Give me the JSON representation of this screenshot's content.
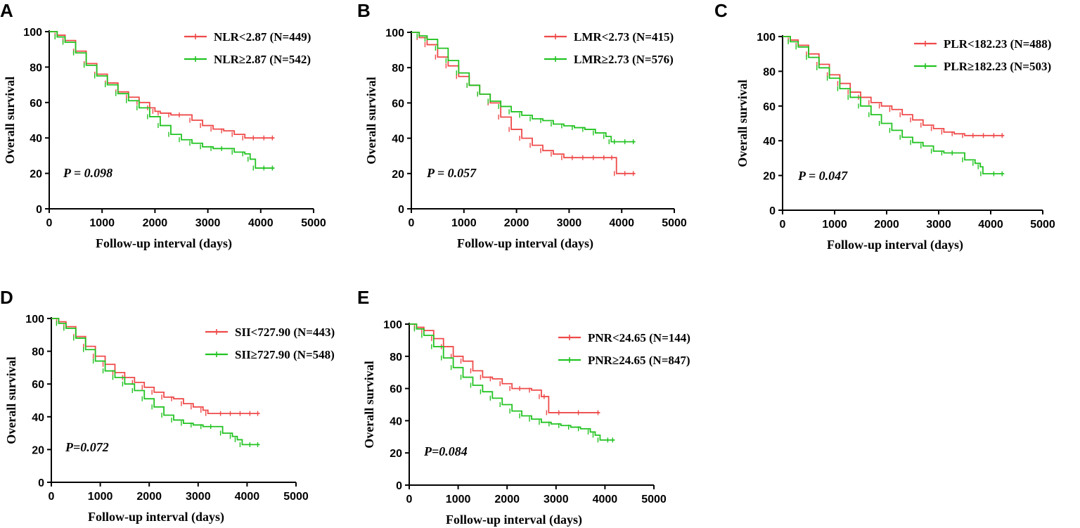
{
  "chart_data": [
    {
      "type": "line",
      "panel": "A",
      "title": "",
      "xlabel": "Follow-up interval (days)",
      "ylabel": "Overall survival",
      "xlim": [
        0,
        5000
      ],
      "ylim": [
        0,
        100
      ],
      "xticks": [
        "0",
        "1000",
        "2000",
        "3000",
        "4000",
        "5000"
      ],
      "yticks": [
        "0",
        "20",
        "40",
        "60",
        "80",
        "100"
      ],
      "p_value": "P =  0.098",
      "series": [
        {
          "name": "NLR<2.87 (N=449)",
          "color": "#ef4a4a",
          "x": [
            0,
            150,
            300,
            500,
            700,
            900,
            1100,
            1300,
            1500,
            1700,
            1900,
            2000,
            2100,
            2300,
            2500,
            2700,
            2900,
            3100,
            3300,
            3500,
            3700,
            3900,
            4100,
            4260
          ],
          "y": [
            100,
            98,
            95,
            89,
            82,
            76,
            71,
            66,
            63,
            60,
            57,
            55,
            54,
            53,
            53,
            50,
            47,
            45,
            44,
            42,
            40,
            40,
            40,
            40
          ]
        },
        {
          "name": "NLR≥2.87 (N=542)",
          "color": "#22c322",
          "x": [
            0,
            150,
            300,
            500,
            700,
            900,
            1100,
            1300,
            1500,
            1700,
            1900,
            2100,
            2300,
            2500,
            2700,
            2900,
            3100,
            3300,
            3500,
            3700,
            3800,
            3900,
            4100,
            4260
          ],
          "y": [
            100,
            97,
            94,
            88,
            81,
            75,
            70,
            65,
            61,
            57,
            52,
            47,
            42,
            39,
            37,
            35,
            34,
            34,
            32,
            31,
            28,
            23,
            23,
            23
          ]
        }
      ]
    },
    {
      "type": "line",
      "panel": "B",
      "title": "",
      "xlabel": "Follow-up interval (days)",
      "ylabel": "Overall survival",
      "xlim": [
        0,
        5000
      ],
      "ylim": [
        0,
        100
      ],
      "xticks": [
        "0",
        "1000",
        "2000",
        "3000",
        "4000",
        "5000"
      ],
      "yticks": [
        "0",
        "20",
        "40",
        "60",
        "80",
        "100"
      ],
      "p_value": "P =  0.057",
      "series": [
        {
          "name": "LMR<2.73 (N=415)",
          "color": "#ef4a4a",
          "x": [
            0,
            150,
            300,
            500,
            700,
            900,
            1100,
            1300,
            1500,
            1700,
            1900,
            2100,
            2300,
            2500,
            2700,
            2900,
            3100,
            3300,
            3500,
            3700,
            3850,
            3900,
            4100,
            4260
          ],
          "y": [
            100,
            97,
            93,
            86,
            81,
            75,
            70,
            65,
            60,
            52,
            45,
            40,
            36,
            33,
            31,
            29,
            29,
            29,
            29,
            29,
            29,
            20,
            20,
            20
          ]
        },
        {
          "name": "LMR≥2.73 (N=576)",
          "color": "#22c322",
          "x": [
            0,
            150,
            300,
            500,
            700,
            900,
            1100,
            1300,
            1500,
            1700,
            1900,
            2100,
            2300,
            2500,
            2700,
            2900,
            3100,
            3300,
            3500,
            3700,
            3800,
            3900,
            4100,
            4260
          ],
          "y": [
            100,
            98,
            96,
            91,
            84,
            77,
            70,
            65,
            61,
            58,
            55,
            53,
            51,
            50,
            48,
            47,
            46,
            45,
            43,
            41,
            38,
            38,
            38,
            38
          ]
        }
      ]
    },
    {
      "type": "line",
      "panel": "C",
      "title": "",
      "xlabel": "Follow-up interval (days)",
      "ylabel": "Overall survival",
      "xlim": [
        0,
        5000
      ],
      "ylim": [
        0,
        100
      ],
      "xticks": [
        "0",
        "1000",
        "2000",
        "3000",
        "4000",
        "5000"
      ],
      "yticks": [
        "0",
        "20",
        "40",
        "60",
        "80",
        "100"
      ],
      "p_value": "P =  0.047",
      "series": [
        {
          "name": "PLR<182.23 (N=488)",
          "color": "#ef4a4a",
          "x": [
            0,
            150,
            300,
            500,
            700,
            900,
            1100,
            1300,
            1500,
            1700,
            1900,
            2100,
            2300,
            2500,
            2700,
            2900,
            3100,
            3300,
            3500,
            3700,
            3900,
            4100,
            4260
          ],
          "y": [
            100,
            98,
            95,
            90,
            84,
            78,
            73,
            68,
            65,
            62,
            60,
            58,
            55,
            52,
            49,
            47,
            45,
            44,
            43,
            43,
            43,
            43,
            43
          ]
        },
        {
          "name": "PLR≥182.23 (N=503)",
          "color": "#22c322",
          "x": [
            0,
            150,
            300,
            500,
            700,
            900,
            1100,
            1300,
            1500,
            1700,
            1900,
            2100,
            2300,
            2500,
            2700,
            2900,
            3100,
            3300,
            3500,
            3700,
            3800,
            3850,
            4100,
            4260
          ],
          "y": [
            100,
            97,
            94,
            88,
            82,
            76,
            70,
            65,
            60,
            55,
            50,
            46,
            42,
            39,
            37,
            34,
            33,
            33,
            29,
            27,
            25,
            21,
            21,
            21
          ]
        }
      ]
    },
    {
      "type": "line",
      "panel": "D",
      "title": "",
      "xlabel": "Follow-up interval (days)",
      "ylabel": "Overall survival",
      "xlim": [
        0,
        5000
      ],
      "ylim": [
        0,
        100
      ],
      "xticks": [
        "0",
        "1000",
        "2000",
        "3000",
        "4000",
        "5000"
      ],
      "yticks": [
        "0",
        "20",
        "40",
        "60",
        "80",
        "100"
      ],
      "p_value": "P=0.072",
      "series": [
        {
          "name": "SII<727.90 (N=443)",
          "color": "#ef4a4a",
          "x": [
            0,
            150,
            300,
            500,
            700,
            900,
            1100,
            1300,
            1500,
            1700,
            1900,
            2100,
            2300,
            2500,
            2700,
            2900,
            3100,
            3200,
            3500,
            3700,
            3900,
            4100,
            4260
          ],
          "y": [
            100,
            98,
            95,
            89,
            83,
            77,
            72,
            67,
            64,
            61,
            58,
            55,
            52,
            51,
            48,
            46,
            44,
            42,
            42,
            42,
            42,
            42,
            42
          ]
        },
        {
          "name": "SII≥727.90 (N=548)",
          "color": "#22c322",
          "x": [
            0,
            150,
            300,
            500,
            700,
            900,
            1100,
            1300,
            1500,
            1700,
            1900,
            2100,
            2300,
            2500,
            2700,
            2900,
            3100,
            3300,
            3500,
            3700,
            3800,
            3900,
            4100,
            4260
          ],
          "y": [
            100,
            97,
            94,
            88,
            81,
            74,
            68,
            64,
            60,
            56,
            51,
            46,
            41,
            38,
            36,
            35,
            34,
            34,
            30,
            28,
            26,
            23,
            23,
            23
          ]
        }
      ]
    },
    {
      "type": "line",
      "panel": "E",
      "title": "",
      "xlabel": "Follow-up interval (days)",
      "ylabel": "Overall survival",
      "xlim": [
        0,
        5000
      ],
      "ylim": [
        0,
        100
      ],
      "xticks": [
        "0",
        "1000",
        "2000",
        "3000",
        "4000",
        "5000"
      ],
      "yticks": [
        "0",
        "20",
        "40",
        "60",
        "80",
        "100"
      ],
      "p_value": "P=0.084",
      "series": [
        {
          "name": "PNR<24.65 (N=144)",
          "color": "#ef4a4a",
          "x": [
            0,
            150,
            300,
            500,
            700,
            900,
            1100,
            1300,
            1500,
            1700,
            1900,
            2100,
            2300,
            2500,
            2700,
            2800,
            2850,
            3100,
            3500,
            3900
          ],
          "y": [
            100,
            98,
            96,
            91,
            86,
            80,
            77,
            71,
            67,
            66,
            63,
            60,
            60,
            59,
            55,
            55,
            45,
            45,
            45,
            45
          ]
        },
        {
          "name": "PNR≥24.65 (N=847)",
          "color": "#22c322",
          "x": [
            0,
            150,
            300,
            500,
            700,
            900,
            1100,
            1300,
            1500,
            1700,
            1900,
            2100,
            2300,
            2500,
            2700,
            2900,
            3100,
            3300,
            3500,
            3700,
            3800,
            3900,
            4100,
            4200
          ],
          "y": [
            100,
            97,
            93,
            86,
            79,
            73,
            67,
            62,
            58,
            54,
            50,
            46,
            43,
            41,
            39,
            38,
            37,
            36,
            35,
            33,
            31,
            28,
            28,
            28
          ]
        }
      ]
    }
  ],
  "colors": {
    "axis": "#000000",
    "low_group": "#ef4a4a",
    "high_group": "#22c322"
  }
}
